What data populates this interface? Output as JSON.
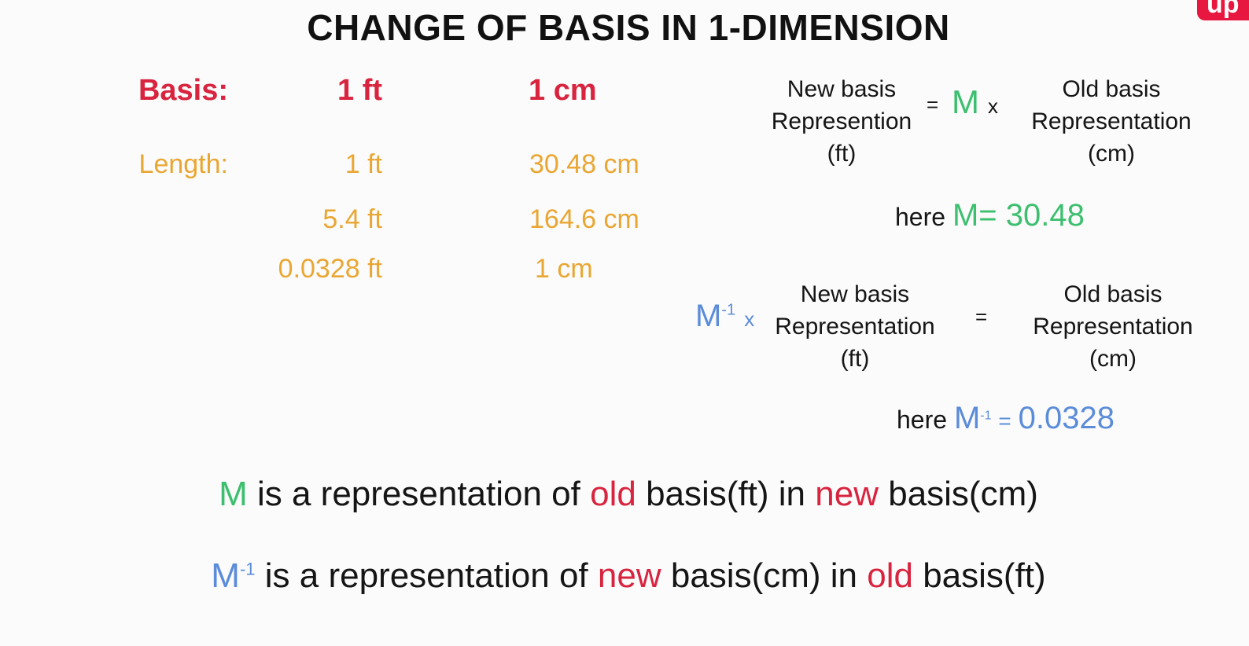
{
  "title": "CHANGE OF BASIS IN 1-DIMENSION",
  "badge": "up",
  "basis_row": {
    "label": "Basis:",
    "ft": "1 ft",
    "cm": "1 cm"
  },
  "length_rows": {
    "label": "Length:",
    "rows": [
      {
        "ft": "1 ft",
        "cm": "30.48 cm"
      },
      {
        "ft": "5.4 ft",
        "cm": "164.6 cm"
      },
      {
        "ft": "0.0328 ft",
        "cm": "1 cm"
      }
    ]
  },
  "equation1": {
    "left": [
      "New basis",
      "Represention",
      "(ft)"
    ],
    "equals": "=",
    "matrix": "M",
    "times": "x",
    "right": [
      "Old basis",
      "Representation",
      "(cm)"
    ],
    "here_label": "here",
    "here_value": "M= 30.48"
  },
  "equation2": {
    "matrix": "M",
    "exponent": "-1",
    "times": "x",
    "left": [
      "New basis",
      "Representation",
      "(ft)"
    ],
    "equals": "=",
    "right": [
      "Old basis",
      "Representation",
      "(cm)"
    ],
    "here_label": "here",
    "here_matrix": "M",
    "here_exponent": "-1",
    "here_equals": "=",
    "here_value": "0.0328"
  },
  "statement1": {
    "m": "M",
    "part1": "is a representation of",
    "old": "old",
    "part2": "basis(ft) in",
    "new": "new",
    "part3": "basis(cm)"
  },
  "statement2": {
    "m": "M",
    "exponent": "-1",
    "part1": "is a representation of",
    "new": "new",
    "part2": "basis(cm) in",
    "old": "old",
    "part3": "basis(ft)"
  }
}
